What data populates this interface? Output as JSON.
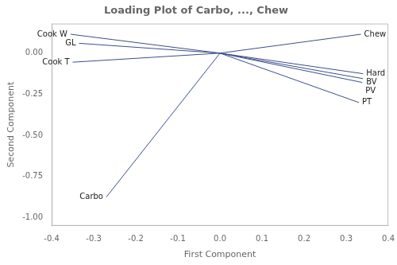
{
  "chart_data": {
    "type": "vector",
    "title": "Loading Plot of Carbo, ..., Chew",
    "xlabel": "First Component",
    "ylabel": "Second Component",
    "color": "#3a4f8c",
    "vectors": [
      {
        "label": "Cook W",
        "x": -0.355,
        "y": 0.115
      },
      {
        "label": "GL",
        "x": -0.335,
        "y": 0.06
      },
      {
        "label": "Cook T",
        "x": -0.35,
        "y": -0.055
      },
      {
        "label": "Carbo",
        "x": -0.27,
        "y": -0.875
      },
      {
        "label": "Chew",
        "x": 0.335,
        "y": 0.115
      },
      {
        "label": "Hard",
        "x": 0.34,
        "y": -0.125
      },
      {
        "label": "BV",
        "x": 0.34,
        "y": -0.155
      },
      {
        "label": "PV",
        "x": 0.338,
        "y": -0.178
      },
      {
        "label": "PT",
        "x": 0.33,
        "y": -0.3
      }
    ],
    "xlim": [
      -0.4,
      0.4
    ],
    "ylim": [
      -1.05,
      0.18
    ],
    "xticks": [
      -0.4,
      -0.3,
      -0.2,
      -0.1,
      {
        "value": 0,
        "label": "0.0"
      },
      0.1,
      0.2,
      0.3,
      0.4
    ],
    "yticks": [
      {
        "value": -1,
        "label": "-1.00"
      },
      -0.75,
      {
        "value": -0.5,
        "label": "-0.50"
      },
      -0.25,
      {
        "value": 0,
        "label": "0.00"
      }
    ],
    "grid": false
  }
}
